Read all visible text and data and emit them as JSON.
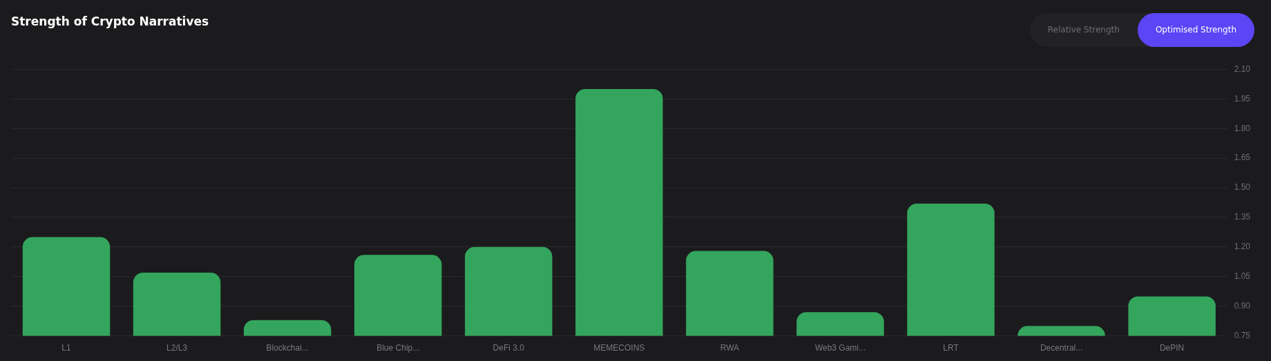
{
  "chart_data": {
    "type": "bar",
    "title": "Strength of Crypto Narratives",
    "categories": [
      "L1",
      "L2/L3",
      "Blockchai...",
      "Blue Chip...",
      "DeFi 3.0",
      "MEMECOINS",
      "RWA",
      "Web3 Gami...",
      "LRT",
      "Decentral...",
      "DePIN"
    ],
    "values": [
      1.25,
      1.07,
      0.83,
      1.16,
      1.2,
      2.0,
      1.18,
      0.87,
      1.42,
      0.8,
      0.95
    ],
    "color": "#34a55d",
    "ylim": [
      0.75,
      2.1
    ],
    "yticks": [
      {
        "value": 0.75,
        "label": "0.75"
      },
      {
        "value": 0.9,
        "label": "0.90"
      },
      {
        "value": 1.05,
        "label": "1.05"
      },
      {
        "value": 1.2,
        "label": "1.20"
      },
      {
        "value": 1.35,
        "label": "1.35"
      },
      {
        "value": 1.5,
        "label": "1.50"
      },
      {
        "value": 1.65,
        "label": "1.65"
      },
      {
        "value": 1.8,
        "label": "1.80"
      },
      {
        "value": 1.95,
        "label": "1.95"
      },
      {
        "value": 2.1,
        "label": "2.10"
      }
    ],
    "grid": "y",
    "annotations": [
      "Relative Strength",
      "Optimised Strength"
    ]
  }
}
